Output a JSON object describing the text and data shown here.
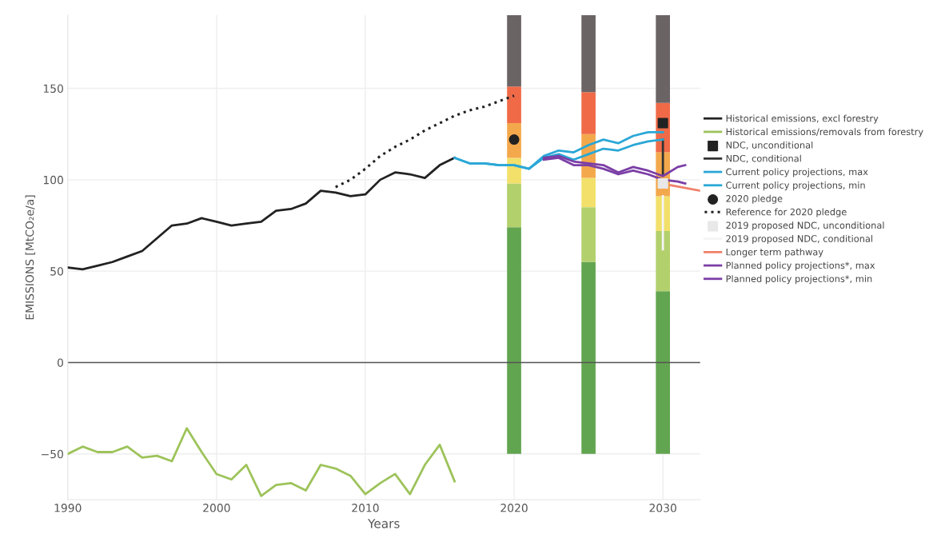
{
  "chart_data": {
    "type": "line",
    "xlabel": "Years",
    "ylabel": "EMISSIONS [MtCO₂e/a]",
    "xlim": [
      1990,
      2032.5
    ],
    "ylim": [
      -75,
      190
    ],
    "xticks": [
      1990,
      2000,
      2010,
      2020,
      2030
    ],
    "yticks": [
      {
        "value": -50,
        "label": "−50"
      },
      0,
      50,
      100,
      150
    ],
    "grid": true,
    "legend": "right",
    "ref_lines": [
      {
        "axis": "y",
        "value": 0,
        "color": "#555555"
      }
    ],
    "series": [
      {
        "type": "bar",
        "x": [
          2020,
          2025,
          2030
        ],
        "base": [
          -50,
          -50,
          -50
        ],
        "color": "#62a550",
        "values": [
          124,
          105,
          89
        ]
      },
      {
        "type": "bar",
        "x": [
          2020,
          2025,
          2030
        ],
        "base": [
          74,
          55,
          39
        ],
        "color": "#b2d06c",
        "values": [
          24,
          30,
          33
        ]
      },
      {
        "type": "bar",
        "x": [
          2020,
          2025,
          2030
        ],
        "base": [
          98,
          85,
          72
        ],
        "color": "#f2e06a",
        "values": [
          14,
          16,
          19
        ]
      },
      {
        "type": "bar",
        "x": [
          2020,
          2025,
          2030
        ],
        "base": [
          112,
          101,
          91
        ],
        "color": "#f4a84c",
        "values": [
          19,
          24,
          24
        ]
      },
      {
        "type": "bar",
        "x": [
          2020,
          2025,
          2030
        ],
        "base": [
          131,
          125,
          115
        ],
        "color": "#f06a48",
        "values": [
          20,
          23,
          27
        ]
      },
      {
        "type": "bar",
        "x": [
          2020,
          2025,
          2030
        ],
        "base": [
          151,
          148,
          142
        ],
        "color": "#6b6464",
        "values": [
          39,
          42,
          48
        ]
      },
      {
        "name": "Historical emissions, excl forestry",
        "color": "#222222",
        "x": [
          1990,
          1991,
          1992,
          1993,
          1994,
          1995,
          1996,
          1997,
          1998,
          1999,
          2000,
          2001,
          2002,
          2003,
          2004,
          2005,
          2006,
          2007,
          2008,
          2009,
          2010,
          2011,
          2012,
          2013,
          2014,
          2015,
          2016
        ],
        "values": [
          52,
          51,
          53,
          55,
          58,
          61,
          68,
          75,
          76,
          79,
          77,
          75,
          76,
          77,
          83,
          84,
          87,
          94,
          93,
          91,
          92,
          100,
          104,
          103,
          101,
          108,
          112
        ]
      },
      {
        "name": "Historical emissions/removals from forestry",
        "color": "#9dc35a",
        "x": [
          1990,
          1991,
          1992,
          1993,
          1994,
          1995,
          1996,
          1997,
          1998,
          1999,
          2000,
          2001,
          2002,
          2003,
          2004,
          2005,
          2006,
          2007,
          2008,
          2009,
          2010,
          2011,
          2012,
          2013,
          2014,
          2015,
          2016
        ],
        "values": [
          -50,
          -46,
          -49,
          -49,
          -46,
          -52,
          -51,
          -54,
          -36,
          -49,
          -61,
          -64,
          -56,
          -73,
          -67,
          -66,
          -70,
          -56,
          -58,
          -62,
          -72,
          -66,
          -61,
          -72,
          -56,
          -45,
          -65
        ]
      },
      {
        "type": "scatter",
        "name": "NDC, unconditional",
        "color": "#222222",
        "marker": "square",
        "x": [
          2030
        ],
        "values": [
          131
        ]
      },
      {
        "name": "NDC, conditional",
        "color": "#333333",
        "x": [
          2030,
          2030
        ],
        "values": [
          122,
          103
        ]
      },
      {
        "name": "Current policy projections, max",
        "color": "#2aa7d6",
        "x": [
          2016,
          2017,
          2018,
          2019,
          2020,
          2021,
          2022,
          2023,
          2024,
          2025,
          2026,
          2027,
          2028,
          2029,
          2030
        ],
        "values": [
          112,
          109,
          109,
          108,
          108,
          106,
          113,
          116,
          115,
          119,
          122,
          120,
          124,
          126,
          126
        ]
      },
      {
        "name": "Current policy projections, min",
        "color": "#2aa7d6",
        "x": [
          2016,
          2017,
          2018,
          2019,
          2020,
          2021,
          2022,
          2023,
          2024,
          2025,
          2026,
          2027,
          2028,
          2029,
          2030
        ],
        "values": [
          112,
          109,
          109,
          108,
          108,
          106,
          112,
          114,
          111,
          114,
          117,
          116,
          119,
          121,
          122
        ]
      },
      {
        "type": "scatter",
        "name": "2020 pledge",
        "color": "#222222",
        "marker": "circle",
        "x": [
          2020
        ],
        "values": [
          122
        ]
      },
      {
        "name": "Reference for 2020 pledge",
        "color": "#222222",
        "line_style": "dotted",
        "x": [
          2008,
          2009,
          2010,
          2011,
          2012,
          2013,
          2014,
          2015,
          2016,
          2017,
          2018,
          2019,
          2020
        ],
        "values": [
          96,
          100,
          106,
          113,
          118,
          122,
          127,
          131,
          135,
          138,
          140,
          143,
          146
        ]
      },
      {
        "type": "scatter",
        "name": "2019 proposed NDC, unconditional",
        "color": "#e8e8e8",
        "marker": "square",
        "x": [
          2030
        ],
        "values": [
          98
        ]
      },
      {
        "name": "2019 proposed NDC, conditional",
        "color": "#f4f4f4",
        "x": [
          2030,
          2030
        ],
        "values": [
          91,
          62
        ]
      },
      {
        "name": "Longer term pathway",
        "color": "#f0806a",
        "x": [
          2030.5,
          2032.5
        ],
        "values": [
          97,
          94
        ]
      },
      {
        "name": "Planned policy projections*, max",
        "color": "#7b3ea6",
        "x": [
          2022,
          2023,
          2024,
          2025,
          2026,
          2027,
          2028,
          2029,
          2030,
          2031,
          2031.5
        ],
        "values": [
          112,
          113,
          110,
          109,
          108,
          104,
          107,
          105,
          102,
          107,
          108
        ]
      },
      {
        "name": "Planned policy projections*, min",
        "color": "#7b3ea6",
        "x": [
          2022,
          2023,
          2024,
          2025,
          2026,
          2027,
          2028,
          2029,
          2030,
          2031,
          2031.5
        ],
        "values": [
          111,
          112,
          108,
          108,
          106,
          103,
          105,
          103,
          100,
          99,
          98
        ]
      }
    ]
  }
}
